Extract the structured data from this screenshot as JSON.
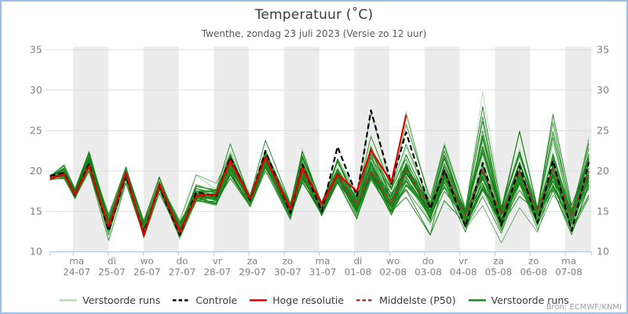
{
  "header": {
    "title": "Temperatuur (˚C)",
    "subtitle": "Twenthe, zondag 23 juli 2023 (Versie zo 12 uur)"
  },
  "source": "Bron: ECMWF/KNMI",
  "legend": [
    {
      "label": "Verstoorde runs",
      "color": "#b5d9b5",
      "dash": false
    },
    {
      "label": "Controle",
      "color": "#000000",
      "dash": true
    },
    {
      "label": "Hoge resolutie",
      "color": "#e00000",
      "dash": false
    },
    {
      "label": "Middelste (P50)",
      "color": "#a83232",
      "dash": true
    },
    {
      "label": "Verstoorde runs",
      "color": "#1c871c",
      "dash": false
    }
  ],
  "chart_data": {
    "type": "line",
    "title": "Temperatuur (˚C)",
    "subtitle": "Twenthe, zondag 23 juli 2023 (Versie zo 12 uur)",
    "xlabel": "",
    "ylabel": "",
    "ylim": [
      10,
      35
    ],
    "yticks": [
      10,
      15,
      20,
      25,
      30,
      35
    ],
    "grid": "horizontal",
    "legend_position": "bottom",
    "day_labels": [
      {
        "weekday": "ma",
        "date": "24-07"
      },
      {
        "weekday": "di",
        "date": "25-07"
      },
      {
        "weekday": "wo",
        "date": "26-07"
      },
      {
        "weekday": "do",
        "date": "27-07"
      },
      {
        "weekday": "vr",
        "date": "28-07"
      },
      {
        "weekday": "za",
        "date": "29-07"
      },
      {
        "weekday": "zo",
        "date": "30-07"
      },
      {
        "weekday": "ma",
        "date": "31-07"
      },
      {
        "weekday": "di",
        "date": "01-08"
      },
      {
        "weekday": "wo",
        "date": "02-08"
      },
      {
        "weekday": "do",
        "date": "03-08"
      },
      {
        "weekday": "vr",
        "date": "04-08"
      },
      {
        "weekday": "za",
        "date": "05-08"
      },
      {
        "weekday": "zo",
        "date": "06-08"
      },
      {
        "weekday": "ma",
        "date": "07-08"
      }
    ],
    "x_days_since_23_07": [
      0.34,
      0.74,
      1.05,
      1.45,
      2.01,
      2.5,
      3.01,
      3.45,
      4.03,
      4.5,
      5.07,
      5.47,
      6.03,
      6.47,
      7.18,
      7.52,
      8.07,
      8.52,
      9.07,
      9.47,
      10.05,
      10.47,
      11.16,
      11.56,
      12.16,
      12.65,
      13.18,
      13.7,
      14.21,
      14.65,
      15.18,
      15.67
    ],
    "series": {
      "controle": [
        19.4,
        19.8,
        17.0,
        20.9,
        12.6,
        19.4,
        12.4,
        18.1,
        12.1,
        17.4,
        16.9,
        21.7,
        16.4,
        22.5,
        14.8,
        20.8,
        15.0,
        23.0,
        16.9,
        27.5,
        18.4,
        24.8,
        15.3,
        20.1,
        13.1,
        21.0,
        13.3,
        20.6,
        13.6,
        21.3,
        12.6,
        21.1
      ],
      "hoge_resolutie": [
        19.0,
        19.6,
        17.1,
        20.6,
        13.1,
        19.8,
        12.0,
        18.4,
        12.4,
        16.9,
        17.1,
        21.3,
        16.6,
        21.7,
        15.3,
        20.4,
        16.0,
        19.6,
        17.5,
        22.6,
        18.6,
        26.9,
        null,
        null,
        null,
        null,
        null,
        null,
        null,
        null,
        null,
        null
      ],
      "middelste_p50": [
        19.2,
        19.7,
        17.1,
        20.7,
        13.0,
        19.5,
        12.3,
        18.2,
        12.5,
        17.1,
        17.0,
        21.0,
        16.5,
        21.5,
        15.0,
        20.0,
        15.5,
        19.5,
        15.8,
        20.0,
        16.0,
        20.1,
        15.5,
        20.0,
        14.5,
        20.2,
        14.6,
        20.0,
        15.0,
        20.3,
        14.5,
        20.0
      ],
      "ensemble_envelope_min": [
        18.6,
        18.5,
        16.2,
        19.4,
        10.9,
        17.5,
        10.9,
        16.4,
        10.9,
        15.4,
        15.2,
        18.5,
        14.5,
        19.0,
        13.4,
        17.5,
        13.4,
        17.8,
        13.1,
        18.3,
        13.5,
        16.0,
        11.5,
        16.0,
        11.2,
        15.0,
        11.0,
        15.5,
        10.8,
        15.5,
        10.8,
        14.0
      ],
      "ensemble_envelope_max": [
        19.7,
        21.2,
        18.2,
        23.0,
        15.0,
        20.7,
        14.2,
        19.7,
        14.6,
        20.5,
        18.5,
        24.7,
        17.5,
        24.3,
        17.0,
        24.5,
        17.5,
        24.6,
        17.8,
        27.9,
        19.5,
        29.3,
        17.0,
        27.0,
        16.0,
        33.0,
        16.0,
        29.5,
        16.0,
        33.0,
        16.0,
        30.6
      ]
    },
    "ensemble": {
      "member_count": 48,
      "light_member_count": 10,
      "seed": 7
    },
    "colors": {
      "band_shade": "#ececec",
      "grid": "#dcdcdc",
      "axis": "#b3c6e0",
      "tick_label": "#7f7f7f",
      "member_light": [
        "#b5d9b5",
        "#a3d2a3"
      ],
      "member_dark": [
        "#168016",
        "#239023",
        "#2e8b2e",
        "#0f770f"
      ],
      "controle": "#000000",
      "hoge_resolutie": "#e00000",
      "middelste_p50": "#a83232"
    }
  }
}
